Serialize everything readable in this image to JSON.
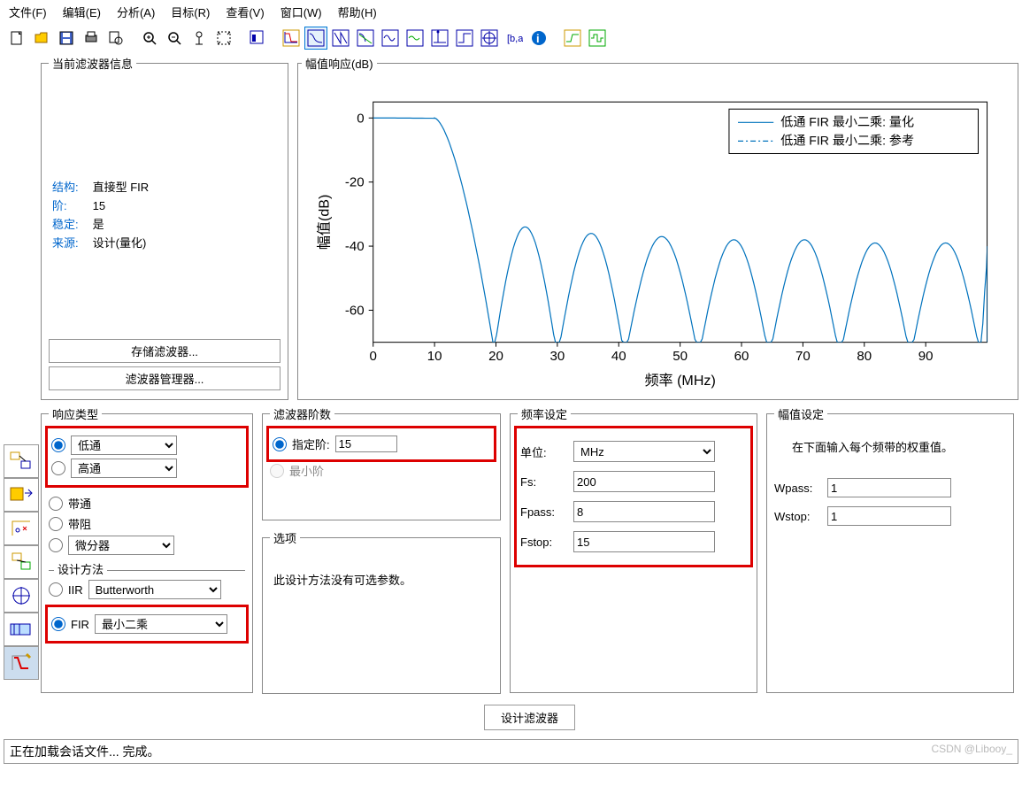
{
  "menu": [
    "文件(F)",
    "编辑(E)",
    "分析(A)",
    "目标(R)",
    "查看(V)",
    "窗口(W)",
    "帮助(H)"
  ],
  "info_panel": {
    "title": "当前滤波器信息",
    "rows": [
      {
        "label": "结构:",
        "value": "直接型 FIR"
      },
      {
        "label": "阶:",
        "value": "15"
      },
      {
        "label": "稳定:",
        "value": "是"
      },
      {
        "label": "来源:",
        "value": "设计(量化)"
      }
    ],
    "btn_save": "存储滤波器...",
    "btn_mgr": "滤波器管理器..."
  },
  "chart": {
    "title": "幅值响应(dB)",
    "xlabel": "频率 (MHz)",
    "ylabel": "幅值(dB)",
    "xlim": [
      0,
      100
    ],
    "ylim": [
      -70,
      5
    ],
    "xticks": [
      0,
      10,
      20,
      30,
      40,
      50,
      60,
      70,
      80,
      90
    ],
    "yticks": [
      0,
      -20,
      -40,
      -60
    ],
    "line_color": "#0072bd",
    "bg": "#ffffff",
    "grid_color": "#ffffff",
    "legend": [
      "低通 FIR 最小二乘: 量化",
      "低通 FIR 最小二乘: 参考"
    ],
    "notch_freqs": [
      19.5,
      30,
      41,
      53,
      64.5,
      76,
      87.5,
      99
    ],
    "lobe_peaks_db": [
      -34,
      -36,
      -37,
      -38,
      -38,
      -39,
      -39,
      -40
    ],
    "passband_end": 10
  },
  "response": {
    "title": "响应类型",
    "items": [
      {
        "label": "低通",
        "type": "select",
        "checked": true
      },
      {
        "label": "高通",
        "type": "select",
        "checked": false
      },
      {
        "label": "带通",
        "type": "plain",
        "checked": false
      },
      {
        "label": "带阻",
        "type": "plain",
        "checked": false
      },
      {
        "label": "微分器",
        "type": "select",
        "checked": false
      }
    ],
    "method_title": "设计方法",
    "iir_label": "IIR",
    "iir_sel": "Butterworth",
    "fir_label": "FIR",
    "fir_sel": "最小二乘"
  },
  "order": {
    "title": "滤波器阶数",
    "spec_label": "指定阶:",
    "spec_value": "15",
    "min_label": "最小阶"
  },
  "options": {
    "title": "选项",
    "text": "此设计方法没有可选参数。"
  },
  "freq": {
    "title": "频率设定",
    "unit_label": "单位:",
    "unit_value": "MHz",
    "rows": [
      {
        "label": "Fs:",
        "value": "200"
      },
      {
        "label": "Fpass:",
        "value": "8"
      },
      {
        "label": "Fstop:",
        "value": "15"
      }
    ]
  },
  "mag": {
    "title": "幅值设定",
    "desc": "在下面输入每个频带的权重值。",
    "rows": [
      {
        "label": "Wpass:",
        "value": "1"
      },
      {
        "label": "Wstop:",
        "value": "1"
      }
    ]
  },
  "design_btn": "设计滤波器",
  "status": "正在加载会话文件... 完成。",
  "watermark": "CSDN @Libooy_"
}
